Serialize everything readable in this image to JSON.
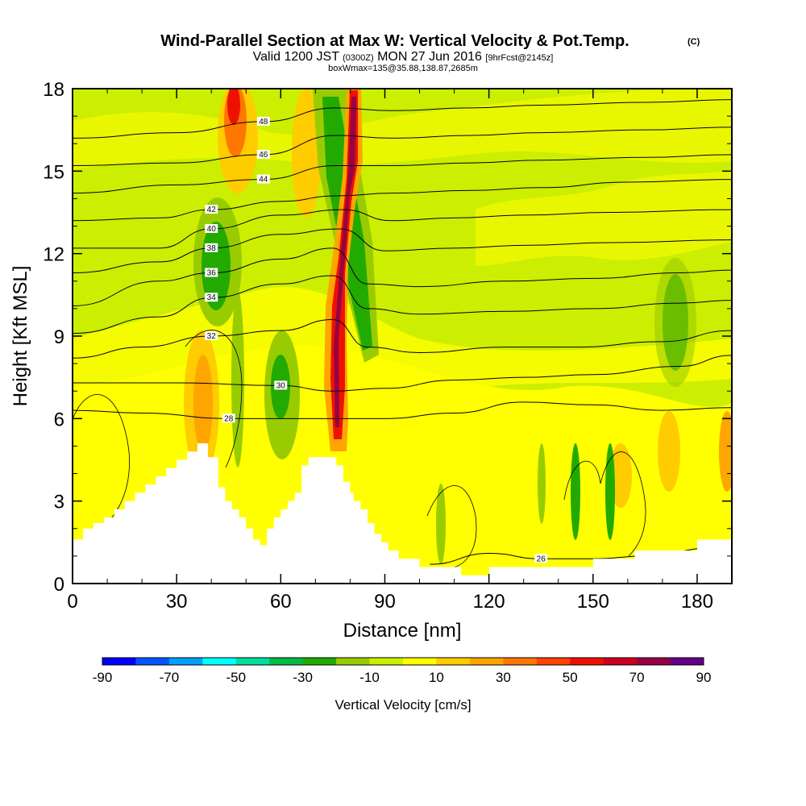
{
  "chart_data": {
    "type": "heatmap",
    "title": "Wind-Parallel Section at Max W: Vertical Velocity & Pot.Temp.",
    "title_mark": "(C)",
    "subtitle_parts": [
      "Valid 1200 JST ",
      "(0300Z)",
      " MON 27 Jun 2016 ",
      "[9hrFcst@2145z]"
    ],
    "subtitle2": "boxWmax=135@35.88,138.87,2685m",
    "xlabel": "Distance [nm]",
    "ylabel": "Height [Kft MSL]",
    "xlim": [
      0,
      190
    ],
    "ylim": [
      0,
      18
    ],
    "x_ticks": [
      "0",
      "30",
      "60",
      "90",
      "120",
      "150",
      "180"
    ],
    "y_ticks": [
      "0",
      "3",
      "6",
      "9",
      "12",
      "15",
      "18"
    ],
    "colorbar": {
      "title": "Vertical Velocity [cm/s]",
      "tick_labels": [
        "-90",
        "-70",
        "-50",
        "-30",
        "-10",
        "10",
        "30",
        "50",
        "70",
        "90"
      ],
      "colors": [
        "#0000ff",
        "#0055ff",
        "#00a0ff",
        "#00ffff",
        "#00dd99",
        "#00bb44",
        "#22aa00",
        "#99cc00",
        "#ccee00",
        "#ffff00",
        "#ffcc00",
        "#ffa500",
        "#ff7700",
        "#ff4400",
        "#ee1100",
        "#cc0022",
        "#990044",
        "#660088"
      ]
    },
    "terrain_kft": [
      [
        0,
        1.6
      ],
      [
        3,
        1.6
      ],
      [
        3,
        2.0
      ],
      [
        6,
        2.0
      ],
      [
        6,
        2.2
      ],
      [
        9,
        2.2
      ],
      [
        9,
        2.4
      ],
      [
        12,
        2.4
      ],
      [
        12,
        2.7
      ],
      [
        15,
        2.7
      ],
      [
        15,
        3.0
      ],
      [
        18,
        3.0
      ],
      [
        18,
        3.3
      ],
      [
        21,
        3.3
      ],
      [
        21,
        3.6
      ],
      [
        24,
        3.6
      ],
      [
        24,
        3.9
      ],
      [
        27,
        3.9
      ],
      [
        27,
        4.2
      ],
      [
        30,
        4.2
      ],
      [
        30,
        4.5
      ],
      [
        33,
        4.5
      ],
      [
        33,
        4.8
      ],
      [
        36,
        4.8
      ],
      [
        36,
        5.1
      ],
      [
        39,
        5.1
      ],
      [
        39,
        4.6
      ],
      [
        42,
        4.6
      ],
      [
        42,
        3.5
      ],
      [
        44,
        3.5
      ],
      [
        44,
        3.0
      ],
      [
        46,
        3.0
      ],
      [
        46,
        2.7
      ],
      [
        48,
        2.7
      ],
      [
        48,
        2.4
      ],
      [
        50,
        2.4
      ],
      [
        50,
        2.0
      ],
      [
        52,
        2.0
      ],
      [
        52,
        1.6
      ],
      [
        54,
        1.6
      ],
      [
        54,
        1.4
      ],
      [
        56,
        1.4
      ],
      [
        56,
        2.0
      ],
      [
        58,
        2.0
      ],
      [
        58,
        2.4
      ],
      [
        60,
        2.4
      ],
      [
        60,
        2.7
      ],
      [
        62,
        2.7
      ],
      [
        62,
        3.0
      ],
      [
        64,
        3.0
      ],
      [
        64,
        3.3
      ],
      [
        66,
        3.3
      ],
      [
        66,
        4.3
      ],
      [
        68,
        4.3
      ],
      [
        68,
        4.6
      ],
      [
        76,
        4.6
      ],
      [
        76,
        4.3
      ],
      [
        78,
        4.3
      ],
      [
        78,
        3.7
      ],
      [
        80,
        3.7
      ],
      [
        80,
        3.3
      ],
      [
        81,
        3.3
      ],
      [
        81,
        3.0
      ],
      [
        83,
        3.0
      ],
      [
        83,
        2.7
      ],
      [
        85,
        2.7
      ],
      [
        85,
        2.2
      ],
      [
        87,
        2.2
      ],
      [
        87,
        1.8
      ],
      [
        89,
        1.8
      ],
      [
        89,
        1.5
      ],
      [
        91,
        1.5
      ],
      [
        91,
        1.2
      ],
      [
        94,
        1.2
      ],
      [
        94,
        0.9
      ],
      [
        100,
        0.9
      ],
      [
        100,
        0.6
      ],
      [
        112,
        0.6
      ],
      [
        112,
        0.3
      ],
      [
        120,
        0.3
      ],
      [
        120,
        0.6
      ],
      [
        150,
        0.6
      ],
      [
        150,
        0.9
      ],
      [
        162,
        0.9
      ],
      [
        162,
        1.2
      ],
      [
        180,
        1.2
      ],
      [
        180,
        1.6
      ],
      [
        190,
        1.6
      ]
    ],
    "isentropes": [
      {
        "label": "26",
        "points": [
          [
            103,
            0.7
          ],
          [
            120,
            1.1
          ],
          [
            135,
            0.9
          ],
          [
            150,
            0.9
          ],
          [
            165,
            1.0
          ],
          [
            185,
            1.3
          ]
        ]
      },
      {
        "label": "28",
        "points": [
          [
            0,
            6.3
          ],
          [
            20,
            6.2
          ],
          [
            45,
            6.0
          ],
          [
            75,
            6.0
          ],
          [
            90,
            6.0
          ],
          [
            110,
            6.2
          ],
          [
            130,
            6.6
          ],
          [
            150,
            6.5
          ],
          [
            170,
            6.3
          ],
          [
            190,
            6.4
          ]
        ]
      },
      {
        "label": "30",
        "points": [
          [
            0,
            7.3
          ],
          [
            30,
            7.3
          ],
          [
            60,
            7.2
          ],
          [
            75,
            7.0
          ],
          [
            90,
            7.1
          ],
          [
            110,
            7.4
          ],
          [
            130,
            7.5
          ],
          [
            150,
            7.6
          ],
          [
            175,
            7.9
          ],
          [
            190,
            8.3
          ]
        ]
      },
      {
        "label": "32",
        "points": [
          [
            0,
            8.2
          ],
          [
            20,
            8.6
          ],
          [
            40,
            9.0
          ],
          [
            60,
            9.2
          ],
          [
            75,
            9.6
          ],
          [
            85,
            8.6
          ],
          [
            100,
            8.4
          ],
          [
            125,
            8.6
          ],
          [
            145,
            8.6
          ],
          [
            170,
            8.8
          ],
          [
            190,
            9.2
          ]
        ]
      },
      {
        "label": "34",
        "points": [
          [
            0,
            9.1
          ],
          [
            25,
            9.7
          ],
          [
            40,
            10.4
          ],
          [
            60,
            10.9
          ],
          [
            75,
            11.2
          ],
          [
            85,
            10.0
          ],
          [
            100,
            9.8
          ],
          [
            125,
            9.9
          ],
          [
            150,
            10.0
          ],
          [
            175,
            10.2
          ],
          [
            190,
            10.3
          ]
        ]
      },
      {
        "label": "36",
        "points": [
          [
            0,
            10.1
          ],
          [
            25,
            11.0
          ],
          [
            40,
            11.3
          ],
          [
            60,
            11.8
          ],
          [
            75,
            12.2
          ],
          [
            85,
            10.9
          ],
          [
            100,
            10.8
          ],
          [
            125,
            11.0
          ],
          [
            150,
            11.1
          ],
          [
            175,
            11.3
          ],
          [
            190,
            11.4
          ]
        ]
      },
      {
        "label": "38",
        "points": [
          [
            0,
            11.3
          ],
          [
            25,
            11.7
          ],
          [
            40,
            12.2
          ],
          [
            60,
            12.7
          ],
          [
            77,
            12.9
          ],
          [
            90,
            12.1
          ],
          [
            110,
            12.2
          ],
          [
            130,
            12.3
          ],
          [
            155,
            12.4
          ],
          [
            190,
            12.5
          ]
        ]
      },
      {
        "label": "40",
        "points": [
          [
            0,
            12.2
          ],
          [
            25,
            12.2
          ],
          [
            40,
            12.9
          ],
          [
            60,
            13.4
          ],
          [
            78,
            13.6
          ],
          [
            92,
            13.2
          ],
          [
            110,
            13.3
          ],
          [
            130,
            13.4
          ],
          [
            155,
            13.5
          ],
          [
            190,
            13.6
          ]
        ]
      },
      {
        "label": "42",
        "points": [
          [
            0,
            13.2
          ],
          [
            25,
            13.3
          ],
          [
            40,
            13.6
          ],
          [
            60,
            13.9
          ],
          [
            76,
            14.1
          ],
          [
            92,
            14.2
          ],
          [
            115,
            14.3
          ],
          [
            135,
            14.4
          ],
          [
            160,
            14.6
          ],
          [
            190,
            14.7
          ]
        ]
      },
      {
        "label": "44",
        "points": [
          [
            0,
            14.2
          ],
          [
            30,
            14.5
          ],
          [
            55,
            14.7
          ],
          [
            76,
            15.2
          ],
          [
            92,
            15.2
          ],
          [
            115,
            15.3
          ],
          [
            135,
            15.4
          ],
          [
            165,
            15.5
          ],
          [
            190,
            15.6
          ]
        ]
      },
      {
        "label": "46",
        "points": [
          [
            0,
            15.2
          ],
          [
            30,
            15.3
          ],
          [
            55,
            15.6
          ],
          [
            76,
            16.3
          ],
          [
            92,
            16.2
          ],
          [
            115,
            16.3
          ],
          [
            135,
            16.4
          ],
          [
            165,
            16.5
          ],
          [
            190,
            16.6
          ]
        ]
      },
      {
        "label": "48",
        "points": [
          [
            0,
            16.2
          ],
          [
            30,
            16.4
          ],
          [
            55,
            16.8
          ],
          [
            76,
            17.3
          ],
          [
            92,
            17.2
          ],
          [
            115,
            17.3
          ],
          [
            135,
            17.4
          ],
          [
            165,
            17.5
          ],
          [
            190,
            17.6
          ]
        ]
      }
    ]
  }
}
